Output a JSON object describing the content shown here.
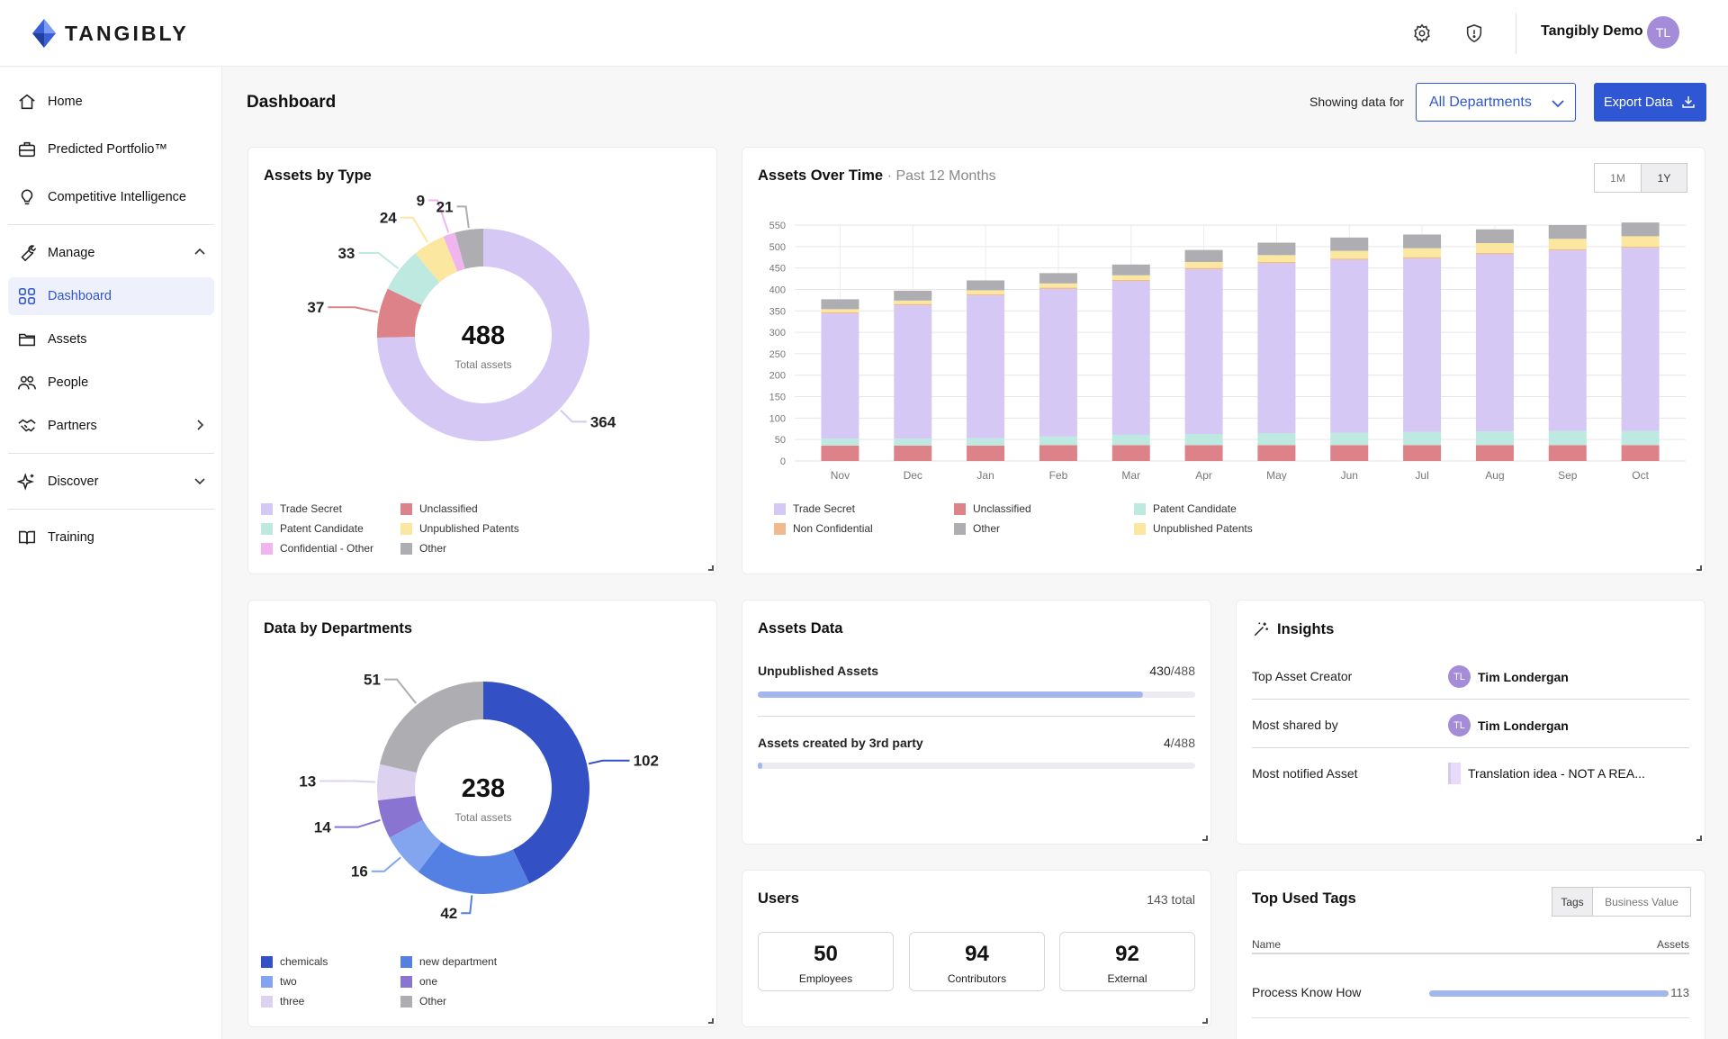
{
  "app": {
    "logo_text": "TANGIBLY",
    "user_name": "Tangibly Demo",
    "user_initials": "TL"
  },
  "sidebar": {
    "home": "Home",
    "predicted": "Predicted Portfolio™",
    "competitive": "Competitive Intelligence",
    "manage": "Manage",
    "dashboard": "Dashboard",
    "assets": "Assets",
    "people": "People",
    "partners": "Partners",
    "discover": "Discover",
    "training": "Training"
  },
  "header": {
    "title": "Dashboard",
    "showing_label": "Showing data for",
    "department": "All Departments",
    "export_label": "Export Data"
  },
  "assets_by_type": {
    "title": "Assets by Type",
    "total": "488",
    "total_label": "Total assets",
    "slices": [
      {
        "name": "Trade Secret",
        "value": 364,
        "color": "#d5c8f5"
      },
      {
        "name": "Unclassified",
        "value": 37,
        "color": "#dc8288"
      },
      {
        "name": "Patent Candidate",
        "value": 33,
        "color": "#bde9e0"
      },
      {
        "name": "Unpublished Patents",
        "value": 24,
        "color": "#fbe7a0"
      },
      {
        "name": "Confidential - Other",
        "value": 9,
        "color": "#f0b5ee"
      },
      {
        "name": "Other",
        "value": 21,
        "color": "#adadb2"
      }
    ],
    "legend": [
      "Trade Secret",
      "Unclassified",
      "Patent Candidate",
      "Unpublished Patents",
      "Confidential - Other",
      "Other"
    ]
  },
  "assets_over_time": {
    "title": "Assets Over Time",
    "subtitle": "· Past 12 Months",
    "range_1m": "1M",
    "range_1y": "1Y",
    "legend": [
      "Trade Secret",
      "Unclassified",
      "Patent Candidate",
      "Non Confidential",
      "Other",
      "Unpublished Patents"
    ]
  },
  "chart_data": {
    "type": "bar",
    "stacked": true,
    "title": "Assets Over Time",
    "categories": [
      "Nov",
      "Dec",
      "Jan",
      "Feb",
      "Mar",
      "Apr",
      "May",
      "Jun",
      "Jul",
      "Aug",
      "Sep",
      "Oct"
    ],
    "ylim": [
      0,
      550
    ],
    "yticks": [
      0,
      50,
      100,
      150,
      200,
      250,
      300,
      350,
      400,
      450,
      500,
      550
    ],
    "series": [
      {
        "name": "Unclassified",
        "color": "#dc8288",
        "values": [
          36,
          36,
          36,
          37,
          37,
          37,
          37,
          37,
          37,
          37,
          37,
          37
        ]
      },
      {
        "name": "Patent Candidate",
        "color": "#bde9e0",
        "values": [
          16,
          16,
          17,
          20,
          24,
          26,
          28,
          29,
          31,
          32,
          33,
          33
        ]
      },
      {
        "name": "Trade Secret",
        "color": "#d5c8f5",
        "values": [
          292,
          311,
          333,
          344,
          358,
          384,
          396,
          403,
          404,
          413,
          421,
          427
        ]
      },
      {
        "name": "Non Confidential",
        "color": "#f1b98e",
        "values": [
          3,
          3,
          3,
          3,
          3,
          3,
          3,
          3,
          3,
          3,
          3,
          3
        ]
      },
      {
        "name": "Unpublished Patents",
        "color": "#fbe7a0",
        "values": [
          7,
          8,
          9,
          10,
          11,
          14,
          16,
          18,
          21,
          23,
          24,
          24
        ]
      },
      {
        "name": "Other",
        "color": "#adadb2",
        "values": [
          23,
          23,
          23,
          24,
          25,
          28,
          29,
          31,
          32,
          32,
          32,
          32
        ]
      }
    ]
  },
  "data_by_departments": {
    "title": "Data by Departments",
    "total": "238",
    "total_label": "Total assets",
    "slices": [
      {
        "name": "chemicals",
        "value": 102,
        "color": "#3350c4"
      },
      {
        "name": "new department",
        "value": 42,
        "color": "#5480e3"
      },
      {
        "name": "two",
        "value": 16,
        "color": "#83a5ef"
      },
      {
        "name": "one",
        "value": 14,
        "color": "#8a74d2"
      },
      {
        "name": "three",
        "value": 13,
        "color": "#dcd2f0"
      },
      {
        "name": "Other",
        "value": 51,
        "color": "#adadb2"
      }
    ],
    "legend": [
      "chemicals",
      "new department",
      "two",
      "one",
      "three",
      "Other"
    ]
  },
  "assets_data": {
    "title": "Assets Data",
    "unpublished_label": "Unpublished Assets",
    "unpublished_value": "430",
    "unpublished_total": "/488",
    "unpublished_fraction": 0.881,
    "third_party_label": "Assets created by 3rd party",
    "third_party_value": "4",
    "third_party_total": "/488",
    "third_party_fraction": 0.008
  },
  "insights": {
    "title": "Insights",
    "rows": [
      {
        "label": "Top Asset Creator",
        "value": "Tim Londergan",
        "initials": "TL"
      },
      {
        "label": "Most shared by",
        "value": "Tim Londergan",
        "initials": "TL"
      },
      {
        "label": "Most notified Asset",
        "value": "Translation idea - NOT A REA..."
      }
    ]
  },
  "users": {
    "title": "Users",
    "total": "143 total",
    "stats": [
      {
        "value": "50",
        "label": "Employees"
      },
      {
        "value": "94",
        "label": "Contributors"
      },
      {
        "value": "92",
        "label": "External"
      }
    ]
  },
  "top_tags": {
    "title": "Top Used Tags",
    "tab_tags": "Tags",
    "tab_business": "Business Value",
    "col_name": "Name",
    "col_assets": "Assets",
    "rows": [
      {
        "name": "Process Know How",
        "value": "113",
        "fraction": 1.0
      }
    ]
  }
}
